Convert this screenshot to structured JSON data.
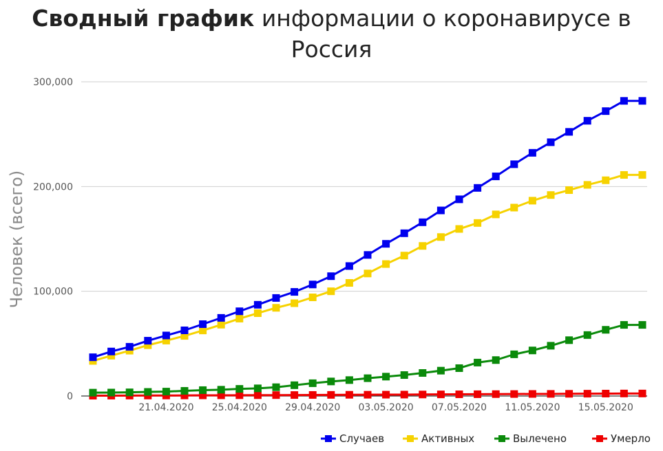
{
  "title": {
    "bold": "Сводный график",
    "rest": "информации о коронавирусе в Россия"
  },
  "chart_data": {
    "type": "line",
    "ylabel": "Человек (всего)",
    "xlabel": "",
    "ylim": [
      0,
      300000
    ],
    "yticks": [
      "0",
      "100,000",
      "200,000",
      "300,000"
    ],
    "x_tick_labels": [
      "21.04.2020",
      "25.04.2020",
      "29.04.2020",
      "03.05.2020",
      "07.05.2020",
      "11.05.2020",
      "15.05.2020"
    ],
    "x": [
      "17.04.2020",
      "18.04.2020",
      "19.04.2020",
      "20.04.2020",
      "21.04.2020",
      "22.04.2020",
      "23.04.2020",
      "24.04.2020",
      "25.04.2020",
      "26.04.2020",
      "27.04.2020",
      "28.04.2020",
      "29.04.2020",
      "30.04.2020",
      "01.05.2020",
      "02.05.2020",
      "03.05.2020",
      "04.05.2020",
      "05.05.2020",
      "06.05.2020",
      "07.05.2020",
      "08.05.2020",
      "09.05.2020",
      "10.05.2020",
      "11.05.2020",
      "12.05.2020",
      "13.05.2020",
      "14.05.2020",
      "15.05.2020",
      "16.05.2020",
      "17.05.2020"
    ],
    "grid": true,
    "legend_position": "bottom-right",
    "series": [
      {
        "name": "Случаев",
        "color": "#0000ee",
        "values": [
          37000,
          42500,
          47000,
          52800,
          57800,
          62700,
          68600,
          74600,
          80900,
          87100,
          93600,
          99400,
          106500,
          114400,
          124100,
          134700,
          145300,
          155400,
          165900,
          177200,
          187800,
          198700,
          209700,
          221300,
          232200,
          242300,
          252200,
          262800,
          272000,
          281800,
          281800
        ]
      },
      {
        "name": "Активных",
        "color": "#f6d200",
        "values": [
          33500,
          38500,
          43300,
          48500,
          52900,
          57400,
          62600,
          68100,
          73900,
          79100,
          84200,
          88600,
          94200,
          100000,
          108000,
          117000,
          126000,
          134100,
          143300,
          151800,
          159500,
          165200,
          173400,
          179900,
          186500,
          191900,
          196600,
          201600,
          206000,
          211100,
          211100
        ]
      },
      {
        "name": "Вылечено",
        "color": "#0a8a0a",
        "values": [
          3200,
          3300,
          3500,
          3900,
          4200,
          4900,
          5600,
          6000,
          6800,
          7300,
          8400,
          10300,
          12200,
          13900,
          15200,
          17000,
          18500,
          20000,
          22000,
          24200,
          26600,
          31900,
          34300,
          39800,
          43500,
          48000,
          53300,
          58200,
          63200,
          67900,
          67900
        ]
      },
      {
        "name": "Умерло",
        "color": "#ee0000",
        "values": [
          310,
          360,
          410,
          460,
          510,
          550,
          620,
          680,
          750,
          800,
          860,
          930,
          1000,
          1070,
          1170,
          1220,
          1280,
          1350,
          1450,
          1540,
          1620,
          1700,
          1800,
          1880,
          1960,
          2010,
          2100,
          2210,
          2300,
          2400,
          2400
        ]
      }
    ]
  }
}
